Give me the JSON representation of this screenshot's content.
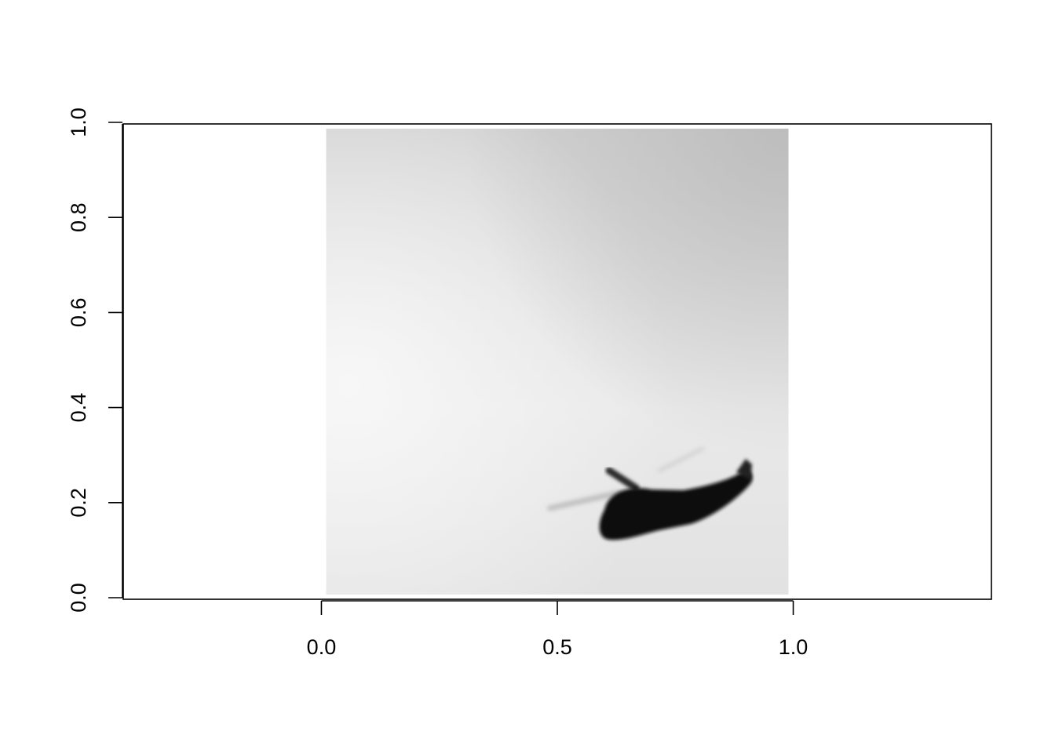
{
  "chart_data": {
    "type": "raster-image",
    "title": "",
    "xlabel": "",
    "ylabel": "",
    "xlim": [
      -0.42,
      1.42
    ],
    "ylim": [
      0.0,
      1.0
    ],
    "x_ticks": [
      {
        "value": 0.0,
        "label": "0.0"
      },
      {
        "value": 0.5,
        "label": "0.5"
      },
      {
        "value": 1.0,
        "label": "1.0"
      }
    ],
    "y_ticks": [
      {
        "value": 0.0,
        "label": "0.0"
      },
      {
        "value": 0.2,
        "label": "0.2"
      },
      {
        "value": 0.4,
        "label": "0.4"
      },
      {
        "value": 0.6,
        "label": "0.6"
      },
      {
        "value": 0.8,
        "label": "0.8"
      },
      {
        "value": 1.0,
        "label": "1.0"
      }
    ],
    "image_extent": {
      "x": [
        0.01,
        0.99
      ],
      "y": [
        0.01,
        0.99
      ]
    },
    "image_subject": "helicopter",
    "grid": false,
    "colors": {
      "frame": "#000000",
      "sky_light": "#f4f4f4",
      "sky_dark": "#bdbdbd",
      "silhouette": "#111111"
    }
  }
}
